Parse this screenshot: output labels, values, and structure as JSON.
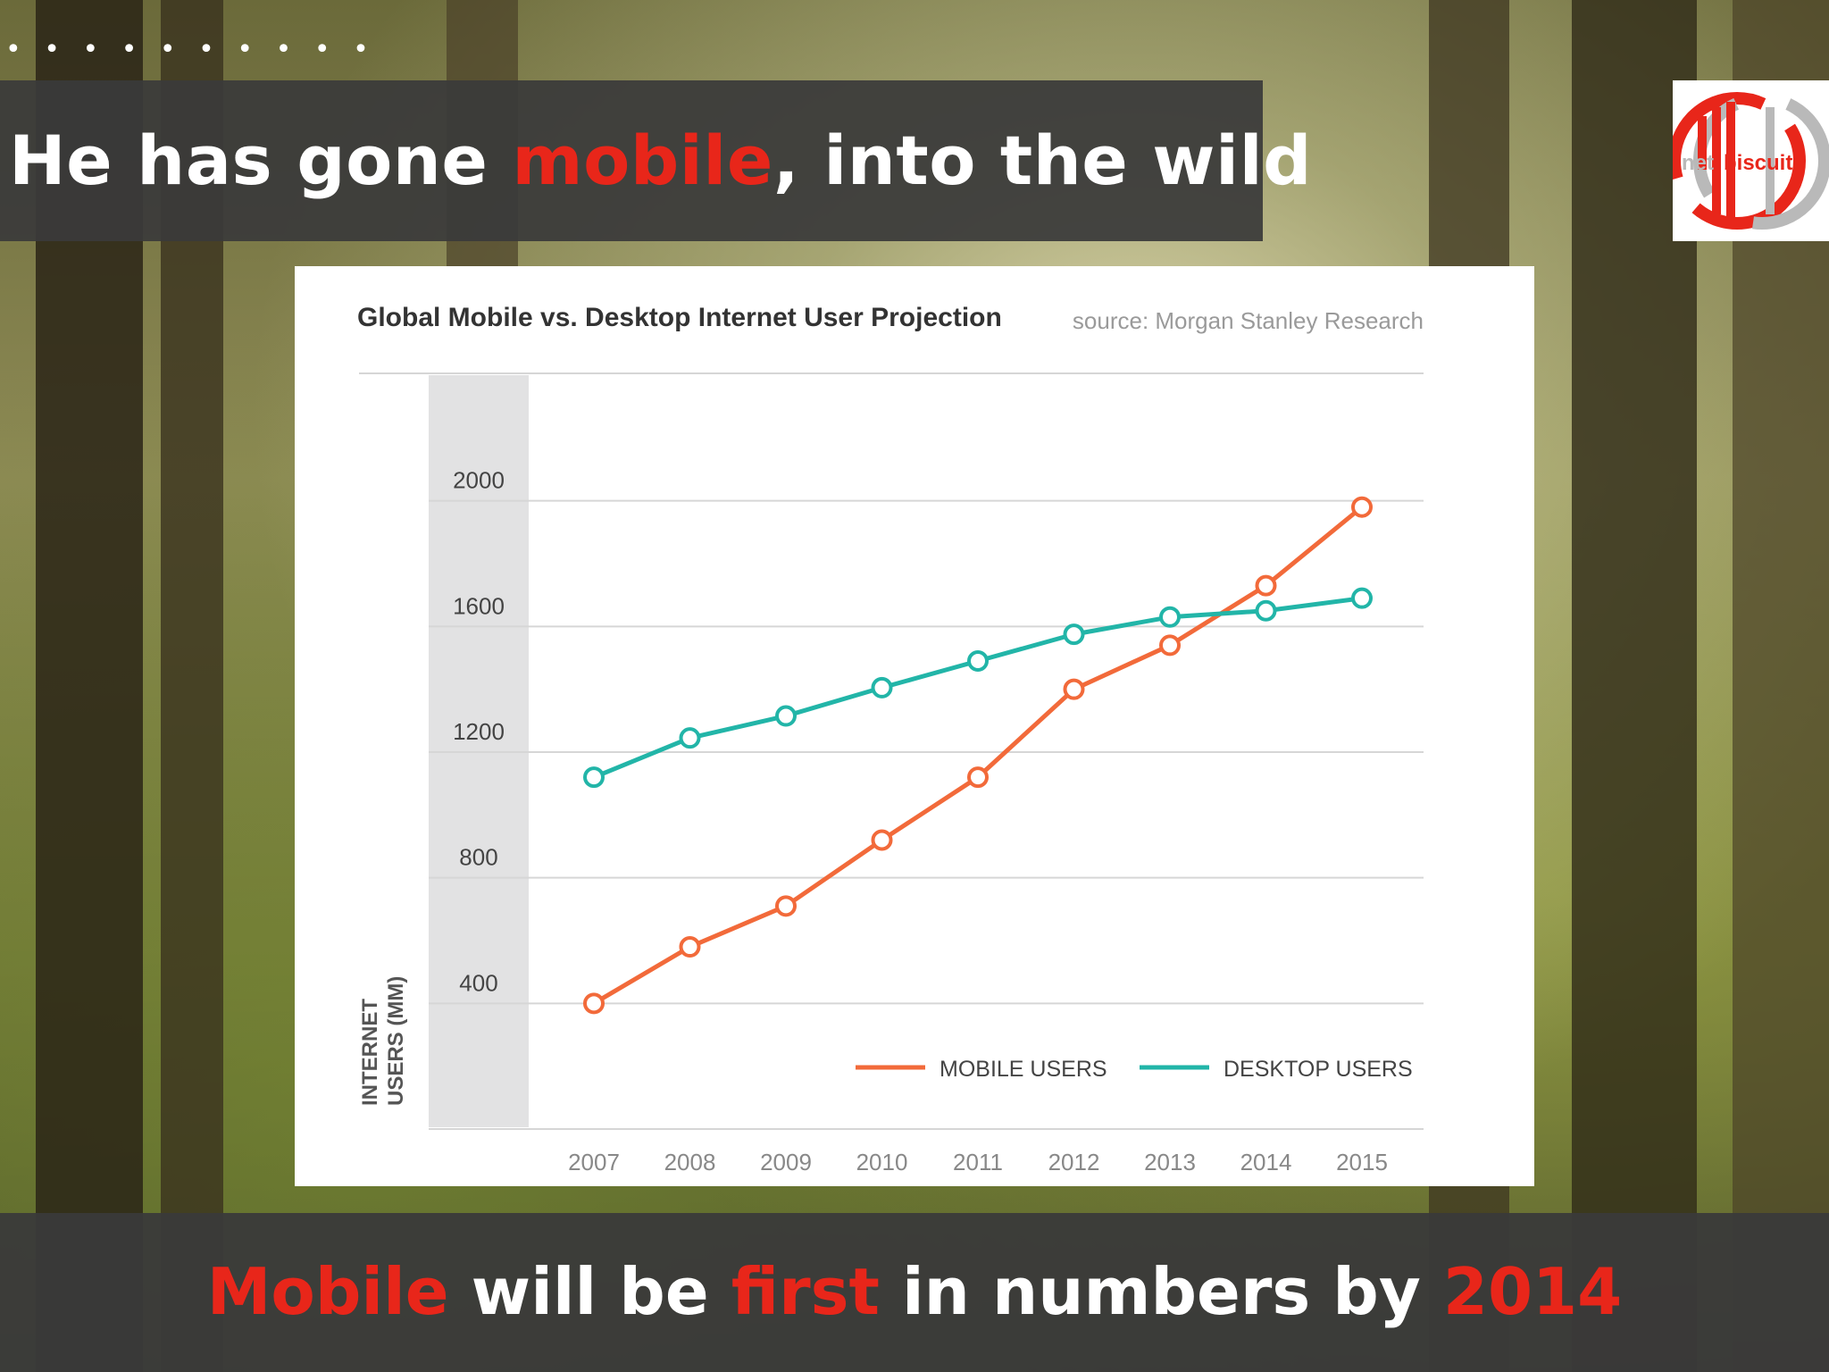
{
  "slide": {
    "dots": "• • • • • • • • • •",
    "title": {
      "pre": "He has gone ",
      "accent": "mobile",
      "post": ", into the wild"
    },
    "logo": {
      "text_net": "net",
      "text_biscuits": "biscuits"
    },
    "bottom": {
      "w1": "Mobile",
      "w2": " will be ",
      "w3": "first",
      "w4": " in numbers by ",
      "w5": "2014"
    },
    "colors": {
      "accent": "#e8261a",
      "bar": "#3a3a3a"
    }
  },
  "chart_data": {
    "type": "line",
    "title": "Global Mobile vs. Desktop Internet User Projection",
    "source": "source: Morgan Stanley Research",
    "ylabel_line1": "INTERNET",
    "ylabel_line2": "USERS (MM)",
    "x": [
      "2007",
      "2008",
      "2009",
      "2010",
      "2011",
      "2012",
      "2013",
      "2014",
      "2015"
    ],
    "yticks": [
      "400",
      "800",
      "1200",
      "1600",
      "2000"
    ],
    "ylim": [
      0,
      2400
    ],
    "grid": true,
    "legend_position": "bottom-right",
    "series": [
      {
        "name": "MOBILE USERS",
        "color": "#f26a3a",
        "values": [
          400,
          580,
          710,
          920,
          1120,
          1400,
          1540,
          1730,
          1980
        ]
      },
      {
        "name": "DESKTOP USERS",
        "color": "#22b5a8",
        "values": [
          1120,
          1245,
          1315,
          1405,
          1490,
          1575,
          1630,
          1650,
          1690
        ]
      }
    ]
  }
}
